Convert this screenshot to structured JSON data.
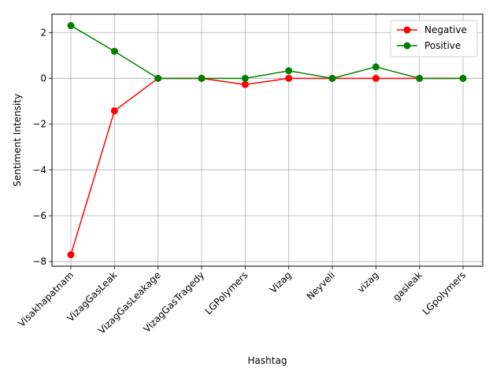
{
  "chart_data": {
    "type": "line",
    "categories": [
      "Visakhapatnam",
      "VizagGasLeak",
      "VizagGasLeakage",
      "VizagGasTragedy",
      "LGPolymers",
      "Vizag",
      "Neyveli",
      "vizag",
      "gasleak",
      "LGpolymers"
    ],
    "series": [
      {
        "name": "Negative",
        "color": "#ff0000",
        "values": [
          -7.7,
          -1.42,
          0,
          0,
          -0.27,
          0,
          0,
          0,
          0,
          0
        ]
      },
      {
        "name": "Positive",
        "color": "#008000",
        "values": [
          2.3,
          1.18,
          0,
          0,
          0,
          0.33,
          0,
          0.5,
          0,
          0
        ]
      }
    ],
    "xlabel": "Hashtag",
    "ylabel": "Sentiment Intensity",
    "ylim": [
      -8.2,
      2.8
    ],
    "yticks": [
      -8,
      -6,
      -4,
      -2,
      0,
      2
    ],
    "grid": true,
    "legend_position": "top-right"
  }
}
